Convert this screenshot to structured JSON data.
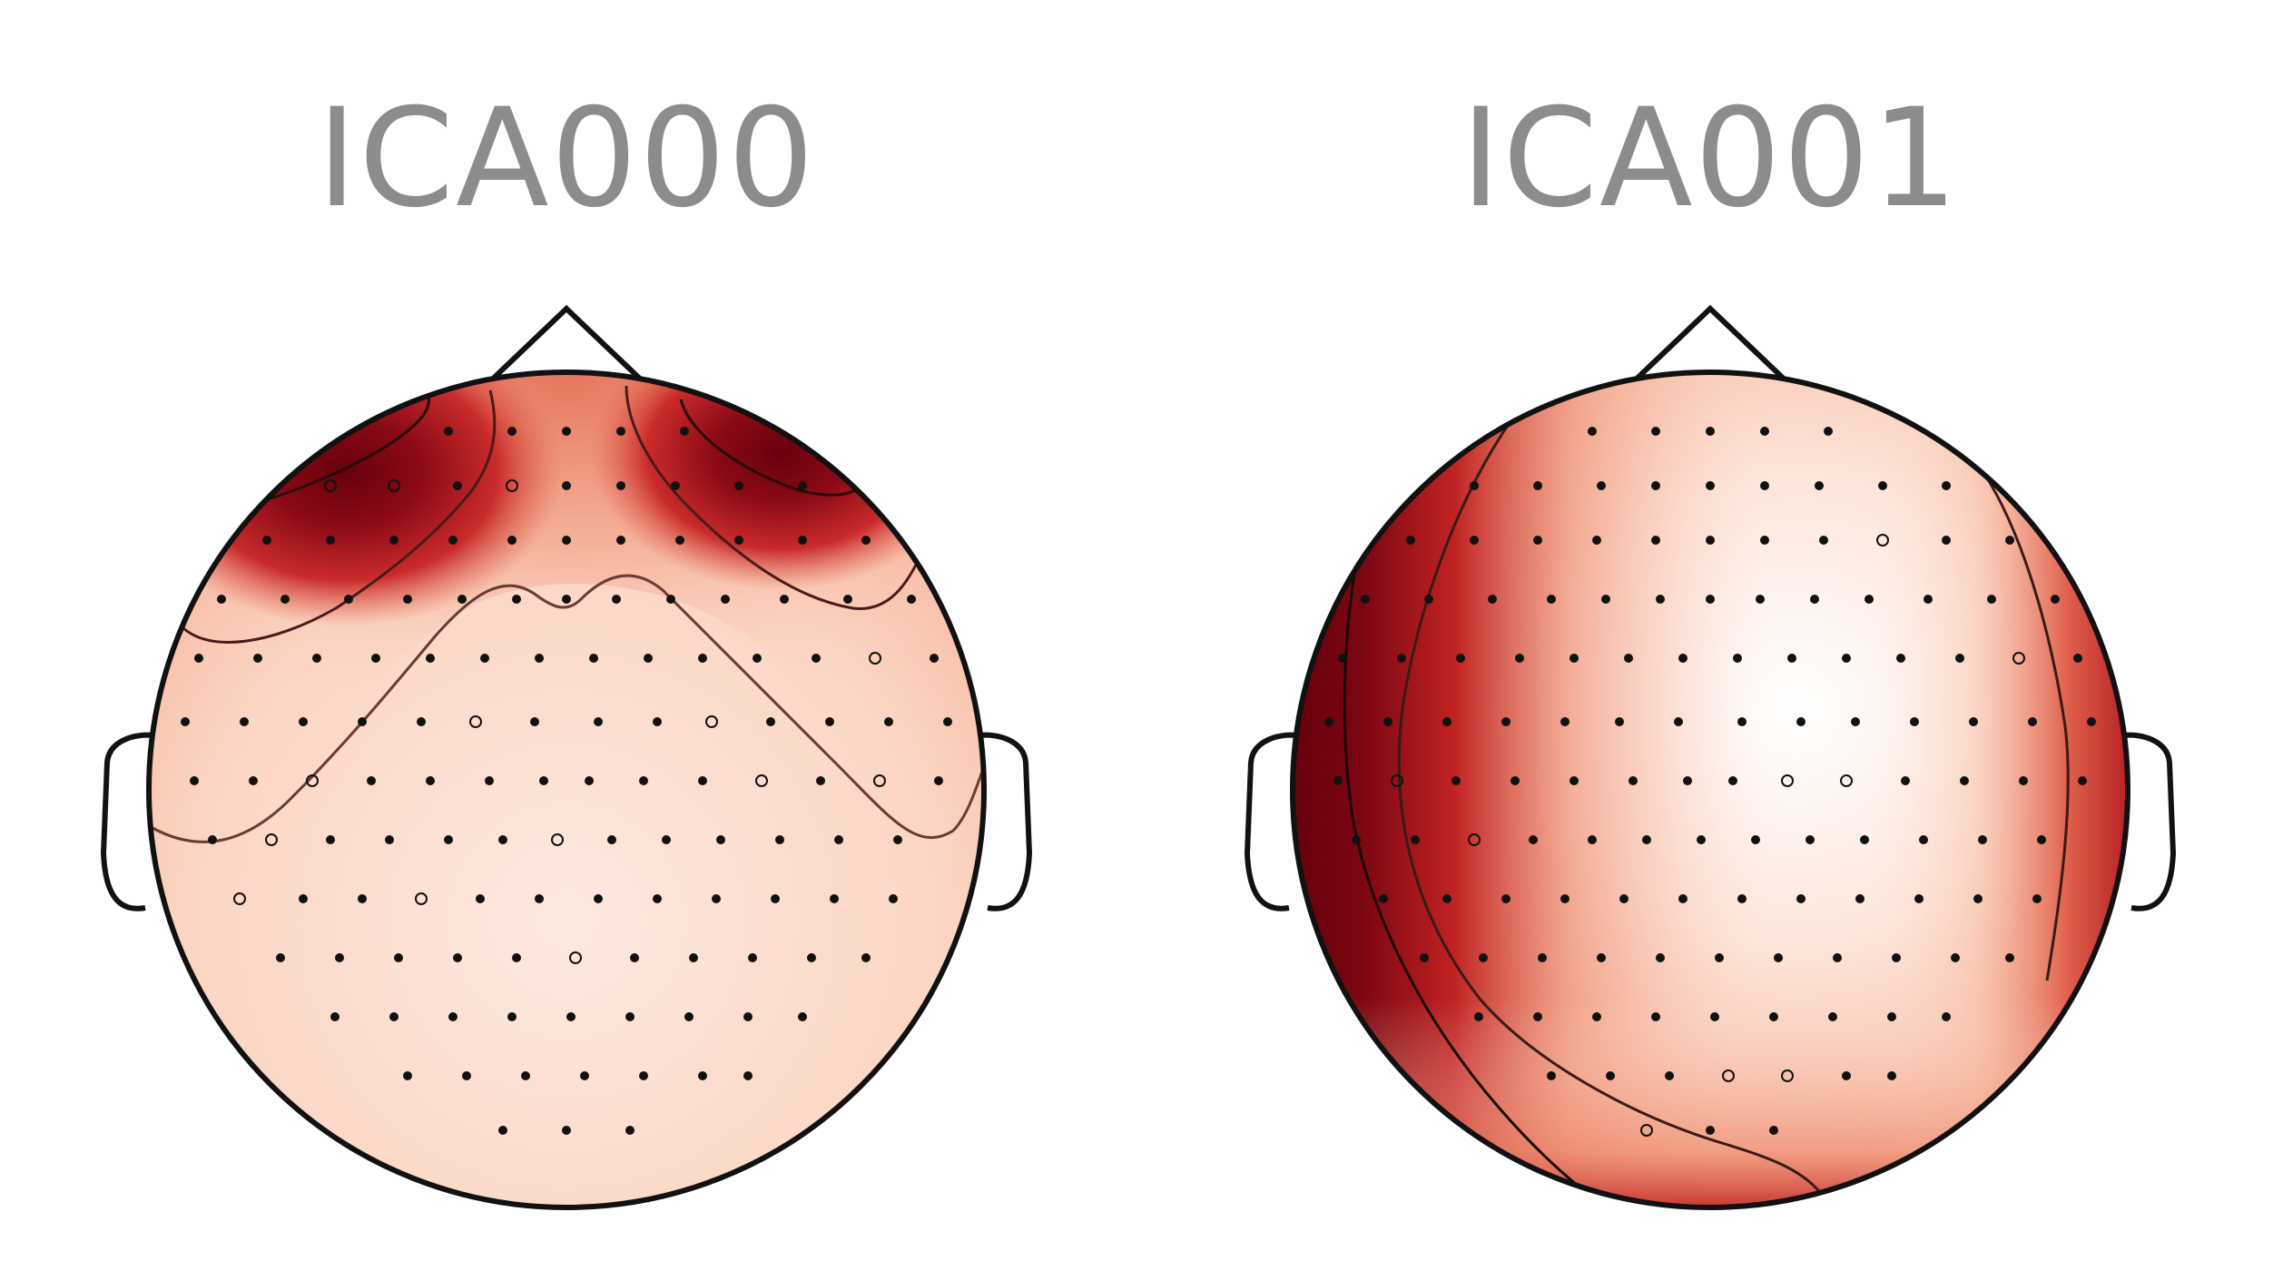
{
  "components": [
    {
      "title": "ICA000",
      "pattern": "frontal"
    },
    {
      "title": "ICA001",
      "pattern": "left-lateral"
    }
  ],
  "colors": {
    "cmap_low": "#ffffff",
    "cmap_mid": "#f7c6ad",
    "cmap_high": "#e0604c",
    "cmap_peak": "#67000d",
    "outline": "#111111",
    "sensor": "#111111",
    "contour": "#3a2a2a",
    "title": "#8c8c8c"
  }
}
